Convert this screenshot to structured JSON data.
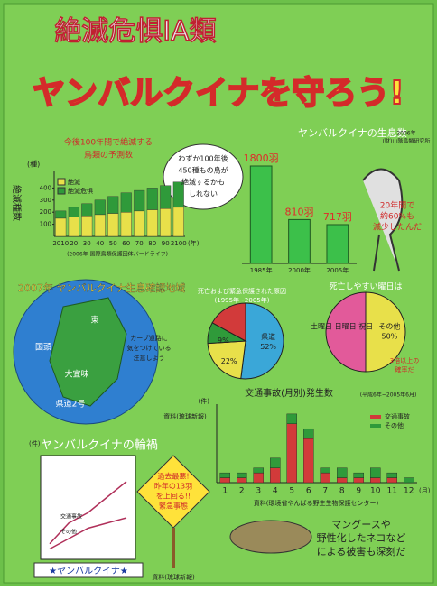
{
  "header": {
    "line1": "絶滅危惧IA類",
    "line2": "ヤンバルクイナを守ろう!"
  },
  "forecast": {
    "title": [
      "今後100年間で絶滅する",
      "鳥類の予測数"
    ],
    "unit": "(種)",
    "ylabel": "絶滅種数",
    "xunit": "(年)",
    "categories": [
      "2010",
      "20",
      "30",
      "40",
      "50",
      "60",
      "70",
      "80",
      "90",
      "2100"
    ],
    "ylim": [
      0,
      500
    ],
    "yticks": [
      100,
      200,
      300,
      400
    ],
    "series": [
      {
        "name": "絶滅",
        "color": "#e8e04a",
        "values": [
          150,
          160,
          170,
          180,
          190,
          200,
          210,
          220,
          230,
          240
        ]
      },
      {
        "name": "絶滅危惧",
        "color": "#2f9a3a",
        "values": [
          60,
          80,
          100,
          120,
          140,
          160,
          170,
          180,
          190,
          210
        ]
      }
    ],
    "source": "(2006年 国際鳥類保護団体バードライフ)"
  },
  "bubble": [
    "わずか100年後",
    "450種もの鳥が",
    "絶滅するかも",
    "しれない"
  ],
  "population": {
    "title": "ヤンバルクイナの生息数",
    "source": [
      "2006年",
      "(財)山階鳥類研究所"
    ],
    "categories": [
      "1985年",
      "2000年",
      "2005年"
    ],
    "values": [
      1800,
      810,
      717
    ],
    "value_labels": [
      "1800羽",
      "810羽",
      "717羽"
    ],
    "ylim": [
      0,
      2000
    ],
    "color": "#3cc04a"
  },
  "bird_says": [
    "20年間で",
    "約60%も",
    "減少したんだ"
  ],
  "map": {
    "title": "2007年 ヤンバルクイナ生息確認地域",
    "labels": [
      "国頭",
      "東",
      "大宜味",
      "県道2号"
    ],
    "note": [
      "カーブ道路に",
      "気をつけている",
      "注意しよう"
    ]
  },
  "cause_pie": {
    "title": [
      "死亡および緊急保護された原因",
      "(1995年~2005年)"
    ],
    "segments": [
      {
        "name": "県道",
        "value": 52,
        "label": "52%",
        "color": "#3aa7d8"
      },
      {
        "value": 22,
        "label": "22%",
        "color": "#e8e04a"
      },
      {
        "value": 9,
        "label": "9%",
        "color": "#2f9a3a"
      },
      {
        "value": 17,
        "color": "#d23a3a"
      }
    ]
  },
  "weekday_pie": {
    "title": "死亡しやすい曜日は",
    "segments": [
      {
        "name": "その他",
        "value": 50,
        "label": "50%",
        "color": "#e8e04a"
      },
      {
        "name": "土曜日 日曜日 祝日",
        "value": 50,
        "color": "#e25a9a"
      }
    ],
    "note": [
      "3倍以上の",
      "確率だ"
    ]
  },
  "monthly": {
    "title": "交通事故(月別)発生数",
    "period": "(平成6年~2005年6月)",
    "unit": "(件)",
    "xunit": "(月)",
    "categories": [
      "1",
      "2",
      "3",
      "4",
      "5",
      "6",
      "7",
      "8",
      "9",
      "10",
      "11",
      "12"
    ],
    "ylim": [
      0,
      16
    ],
    "series": [
      {
        "name": "交通事故",
        "color": "#d23a3a",
        "values": [
          1,
          1,
          2,
          3,
          12,
          9,
          2,
          1,
          1,
          1,
          1,
          0
        ]
      },
      {
        "name": "その他",
        "color": "#2f9a3a",
        "values": [
          1,
          1,
          1,
          2,
          2,
          2,
          1,
          2,
          1,
          2,
          1,
          1
        ]
      }
    ],
    "source": "資料(環境省やんばる野生生物保護センター)",
    "source2": "資料(琉球新報)"
  },
  "accidents": {
    "title": "ヤンバルクイナの輪禍",
    "unit": "(件)",
    "ylim": [
      0,
      20
    ],
    "series": [
      {
        "name": "交通事故",
        "color": "#b0305a",
        "values": [
          3,
          7,
          9,
          12,
          15
        ]
      },
      {
        "name": "その他",
        "color": "#b0305a",
        "values": [
          2,
          4,
          6,
          7,
          8
        ]
      }
    ],
    "source": "資料(琉球新報)"
  },
  "sign": [
    "過去最悪!",
    "昨年の13羽",
    "を上回る!!",
    "緊急事態"
  ],
  "mongoose": [
    "マングースや",
    "野性化したネコなど",
    "による被害も深刻だ"
  ],
  "banner": "★ヤンバルクイナ★"
}
